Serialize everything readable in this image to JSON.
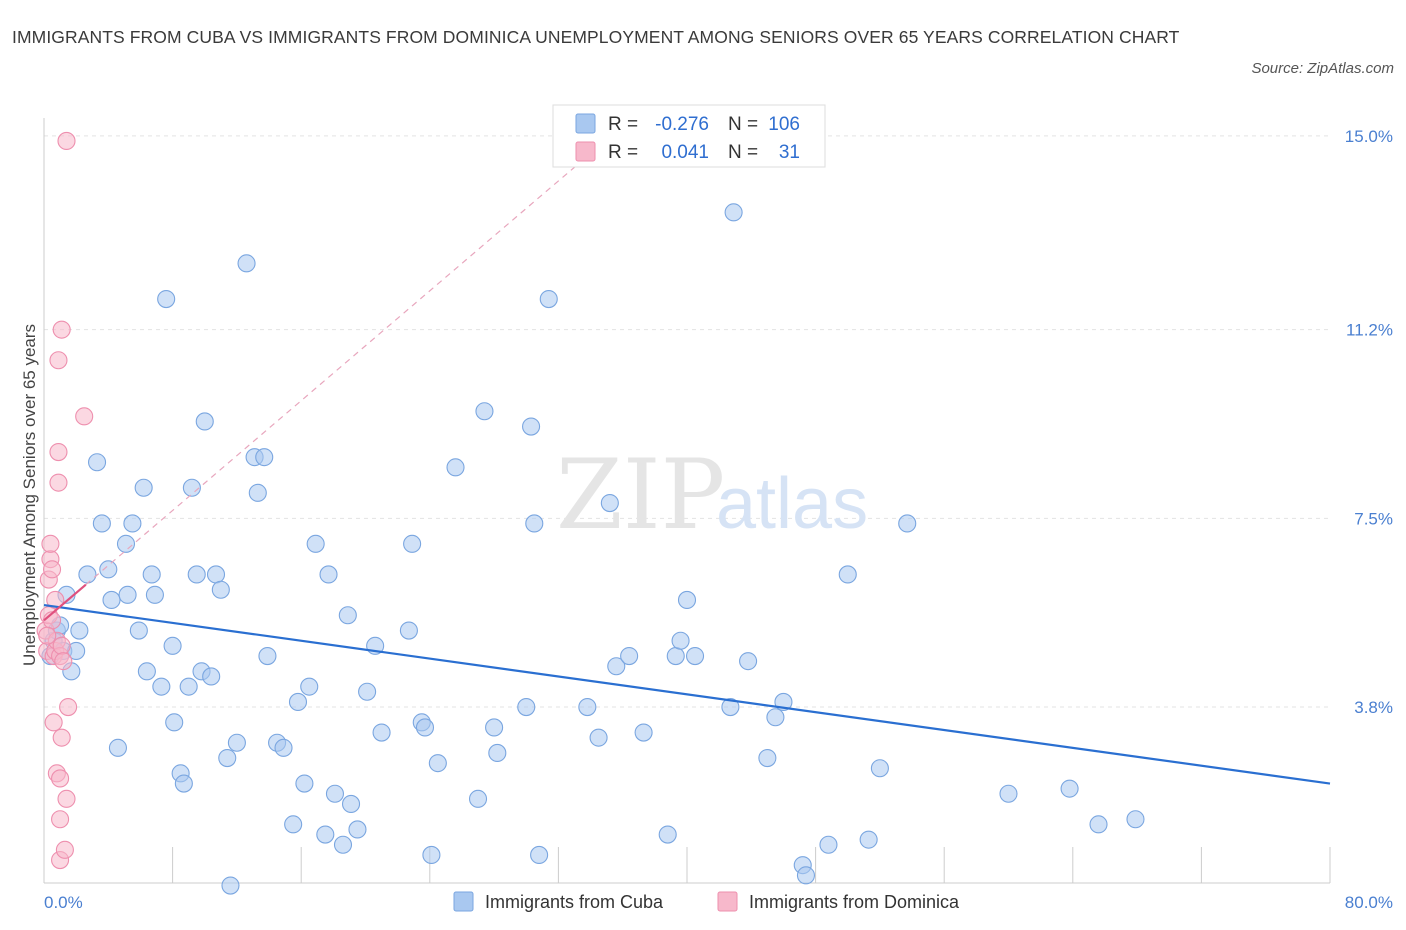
{
  "header": {
    "title": "IMMIGRANTS FROM CUBA VS IMMIGRANTS FROM DOMINICA UNEMPLOYMENT AMONG SENIORS OVER 65 YEARS CORRELATION CHART",
    "source": "Source: ZipAtlas.com"
  },
  "colors": {
    "cuba_fill": "#a9c8f0",
    "cuba_stroke": "#7aa6e0",
    "cuba_line": "#2a6fd1",
    "dominica_fill": "#f7b8cb",
    "dominica_stroke": "#ee8fae",
    "dominica_line": "#e0507e",
    "grid": "#e3e3e3",
    "accent_text": "#4a7fd0"
  },
  "legend": {
    "r_label": "R =",
    "n_label": "N =",
    "cuba": {
      "r": "-0.276",
      "n": "106"
    },
    "dominica": {
      "r": "0.041",
      "n": "31"
    }
  },
  "watermark": {
    "zip": "ZIP",
    "atlas": "atlas"
  },
  "chart_data": {
    "type": "scatter",
    "title": "IMMIGRANTS FROM CUBA VS IMMIGRANTS FROM DOMINICA UNEMPLOYMENT AMONG SENIORS OVER 65 YEARS CORRELATION CHART",
    "xlabel": "",
    "ylabel": "Unemployment Among Seniors over 65 years",
    "xlim": [
      0,
      80
    ],
    "ylim": [
      0.35,
      15.35
    ],
    "y_ticks": [
      3.8,
      7.5,
      11.2,
      15.0
    ],
    "y_tick_labels": [
      "3.8%",
      "7.5%",
      "11.2%",
      "15.0%"
    ],
    "x_tick_labels": [
      "0.0%",
      "80.0%"
    ],
    "x_minor_ticks": [
      8,
      16,
      24,
      32,
      40,
      48,
      56,
      64,
      72,
      80
    ],
    "series": [
      {
        "name": "Immigrants from Cuba",
        "trendline": {
          "x": [
            0,
            80
          ],
          "y": [
            5.8,
            2.3
          ]
        },
        "points": [
          [
            0.4,
            4.8
          ],
          [
            0.6,
            5.1
          ],
          [
            0.8,
            5.3
          ],
          [
            1.0,
            5.4
          ],
          [
            1.2,
            4.9
          ],
          [
            1.4,
            6.0
          ],
          [
            1.7,
            4.5
          ],
          [
            2.0,
            4.9
          ],
          [
            2.2,
            5.3
          ],
          [
            2.7,
            6.4
          ],
          [
            3.3,
            8.6
          ],
          [
            3.6,
            7.4
          ],
          [
            4.0,
            6.5
          ],
          [
            4.2,
            5.9
          ],
          [
            4.6,
            3.0
          ],
          [
            5.1,
            7.0
          ],
          [
            5.2,
            6.0
          ],
          [
            5.5,
            7.4
          ],
          [
            5.9,
            5.3
          ],
          [
            6.2,
            8.1
          ],
          [
            6.4,
            4.5
          ],
          [
            6.7,
            6.4
          ],
          [
            6.9,
            6.0
          ],
          [
            7.3,
            4.2
          ],
          [
            7.6,
            11.8
          ],
          [
            8.0,
            5.0
          ],
          [
            8.1,
            3.5
          ],
          [
            8.5,
            2.5
          ],
          [
            8.7,
            2.3
          ],
          [
            9.0,
            4.2
          ],
          [
            9.2,
            8.1
          ],
          [
            9.5,
            6.4
          ],
          [
            9.8,
            4.5
          ],
          [
            10.0,
            9.4
          ],
          [
            10.4,
            4.4
          ],
          [
            10.7,
            6.4
          ],
          [
            11.0,
            6.1
          ],
          [
            11.4,
            2.8
          ],
          [
            12.0,
            3.1
          ],
          [
            12.6,
            12.5
          ],
          [
            13.1,
            8.7
          ],
          [
            13.3,
            8.0
          ],
          [
            13.7,
            8.7
          ],
          [
            13.9,
            4.8
          ],
          [
            14.5,
            3.1
          ],
          [
            14.9,
            3.0
          ],
          [
            15.5,
            1.5
          ],
          [
            15.8,
            3.9
          ],
          [
            16.2,
            2.3
          ],
          [
            16.5,
            4.2
          ],
          [
            16.9,
            7.0
          ],
          [
            17.5,
            1.3
          ],
          [
            17.7,
            6.4
          ],
          [
            18.1,
            2.1
          ],
          [
            18.6,
            1.1
          ],
          [
            18.9,
            5.6
          ],
          [
            19.1,
            1.9
          ],
          [
            19.5,
            1.4
          ],
          [
            20.1,
            4.1
          ],
          [
            20.6,
            5.0
          ],
          [
            21.0,
            3.3
          ],
          [
            22.7,
            5.3
          ],
          [
            22.9,
            7.0
          ],
          [
            23.5,
            3.5
          ],
          [
            23.7,
            3.4
          ],
          [
            24.1,
            0.9
          ],
          [
            24.5,
            2.7
          ],
          [
            25.6,
            8.5
          ],
          [
            27.0,
            2.0
          ],
          [
            27.4,
            9.6
          ],
          [
            28.0,
            3.4
          ],
          [
            28.2,
            2.9
          ],
          [
            30.0,
            3.8
          ],
          [
            30.3,
            9.3
          ],
          [
            30.5,
            7.4
          ],
          [
            30.8,
            0.9
          ],
          [
            31.4,
            11.8
          ],
          [
            33.8,
            3.8
          ],
          [
            34.5,
            3.2
          ],
          [
            35.2,
            7.8
          ],
          [
            35.6,
            4.6
          ],
          [
            36.4,
            4.8
          ],
          [
            37.3,
            3.3
          ],
          [
            38.8,
            1.3
          ],
          [
            39.3,
            4.8
          ],
          [
            39.6,
            5.1
          ],
          [
            40.0,
            5.9
          ],
          [
            40.5,
            4.8
          ],
          [
            42.7,
            3.8
          ],
          [
            42.9,
            13.5
          ],
          [
            43.8,
            4.7
          ],
          [
            45.0,
            2.8
          ],
          [
            45.5,
            3.6
          ],
          [
            46.0,
            3.9
          ],
          [
            47.2,
            0.7
          ],
          [
            47.4,
            0.5
          ],
          [
            48.8,
            1.1
          ],
          [
            50.0,
            6.4
          ],
          [
            51.3,
            1.2
          ],
          [
            52.0,
            2.6
          ],
          [
            53.7,
            7.4
          ],
          [
            60.0,
            2.1
          ],
          [
            63.8,
            2.2
          ],
          [
            65.6,
            1.5
          ],
          [
            67.9,
            1.6
          ],
          [
            11.6,
            0.3
          ]
        ]
      },
      {
        "name": "Immigrants from Dominica",
        "trendline": {
          "x": [
            0,
            2.6
          ],
          "y": [
            5.5,
            6.2
          ]
        },
        "extended_trendline": {
          "x": [
            2.6,
            33.8
          ],
          "y": [
            6.2,
            14.6
          ]
        },
        "points": [
          [
            0.1,
            5.3
          ],
          [
            0.2,
            4.9
          ],
          [
            0.3,
            5.6
          ],
          [
            0.3,
            6.3
          ],
          [
            0.4,
            6.7
          ],
          [
            0.4,
            7.0
          ],
          [
            0.5,
            6.5
          ],
          [
            0.5,
            5.5
          ],
          [
            0.6,
            4.8
          ],
          [
            0.6,
            3.5
          ],
          [
            0.7,
            5.9
          ],
          [
            0.7,
            4.9
          ],
          [
            0.8,
            2.5
          ],
          [
            0.8,
            5.1
          ],
          [
            0.9,
            8.8
          ],
          [
            0.9,
            8.2
          ],
          [
            0.9,
            10.6
          ],
          [
            1.0,
            0.8
          ],
          [
            1.0,
            1.6
          ],
          [
            1.0,
            2.4
          ],
          [
            1.0,
            4.8
          ],
          [
            1.1,
            11.2
          ],
          [
            1.1,
            3.2
          ],
          [
            1.1,
            5.0
          ],
          [
            1.2,
            4.7
          ],
          [
            1.3,
            1.0
          ],
          [
            1.4,
            2.0
          ],
          [
            1.5,
            3.8
          ],
          [
            1.4,
            14.9
          ],
          [
            2.5,
            9.5
          ],
          [
            0.2,
            5.2
          ]
        ]
      }
    ]
  },
  "bottom_legend": {
    "cuba_label": "Immigrants from Cuba",
    "dominica_label": "Immigrants from Dominica"
  }
}
